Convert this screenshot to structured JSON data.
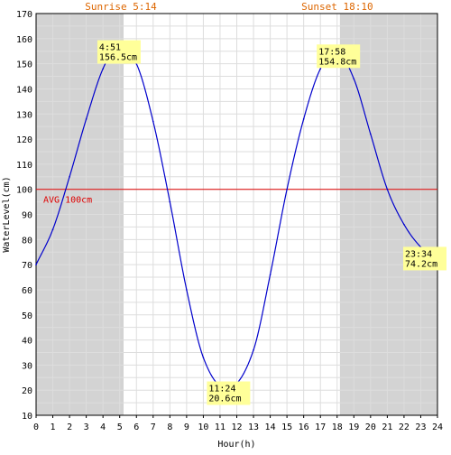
{
  "chart_data": {
    "type": "line",
    "xlabel": "Hour(h)",
    "ylabel": "WaterLevel(cm)",
    "xlim": [
      0,
      24
    ],
    "ylim": [
      10,
      170
    ],
    "x_ticks": [
      "0",
      "1",
      "2",
      "3",
      "4",
      "5",
      "6",
      "7",
      "8",
      "9",
      "10",
      "11",
      "12",
      "13",
      "14",
      "15",
      "16",
      "17",
      "18",
      "19",
      "20",
      "21",
      "22",
      "23",
      "24"
    ],
    "y_ticks": [
      "10",
      "20",
      "30",
      "40",
      "50",
      "60",
      "70",
      "80",
      "90",
      "100",
      "110",
      "120",
      "130",
      "140",
      "150",
      "160",
      "170"
    ],
    "grid": true,
    "sunrise": {
      "label": "Sunrise 5:14",
      "hour": 5.233
    },
    "sunset": {
      "label": "Sunset 18:10",
      "hour": 18.167
    },
    "average": {
      "label": "AVG 100cm",
      "value": 100
    },
    "series": [
      {
        "color": "#0000cc",
        "x": [
          0,
          1,
          2,
          3,
          4,
          4.85,
          6,
          7,
          8,
          9,
          10,
          11.4,
          13,
          14,
          15,
          16,
          17,
          17.97,
          19,
          20,
          21,
          22,
          23,
          23.57,
          24
        ],
        "y": [
          70,
          84,
          105,
          128,
          148,
          156.5,
          150,
          127,
          95,
          60,
          33,
          20.6,
          36,
          66,
          100,
          128,
          148,
          154.8,
          144,
          122,
          100,
          86,
          77,
          74.2,
          75.5
        ]
      }
    ],
    "annotations": [
      {
        "time": "4:51",
        "value": "156.5cm",
        "x": 4.85,
        "y": 156.5
      },
      {
        "time": "11:24",
        "value": "20.6cm",
        "x": 11.4,
        "y": 20.6
      },
      {
        "time": "17:58",
        "value": "154.8cm",
        "x": 17.97,
        "y": 154.8
      },
      {
        "time": "23:34",
        "value": "74.2cm",
        "x": 23.57,
        "y": 74.2
      }
    ],
    "colors": {
      "night_shade": "#d3d3d3",
      "grid": "#dddddd",
      "line": "#0000cc",
      "avg_line": "#dd0000",
      "sun_label": "#dd6600",
      "label_box": "#ffff99"
    }
  }
}
